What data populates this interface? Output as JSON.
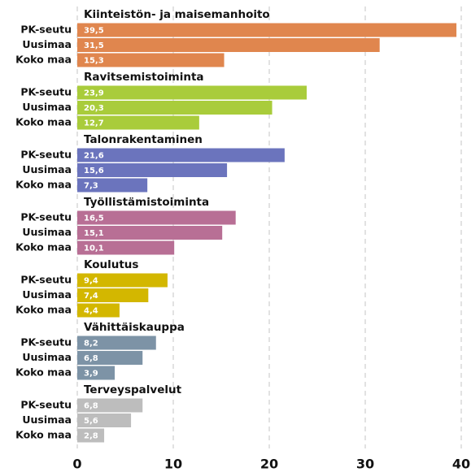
{
  "chart_data": {
    "type": "bar",
    "orientation": "horizontal",
    "categories": [
      "PK-seutu",
      "Uusimaa",
      "Koko maa"
    ],
    "groups": [
      {
        "name": "Kiinteistön- ja maisemanhoito",
        "color": "#e0864e",
        "values": [
          39.5,
          31.5,
          15.3
        ],
        "value_labels": [
          "39,5",
          "31,5",
          "15,3"
        ]
      },
      {
        "name": "Ravitsemistoiminta",
        "color": "#a9cc3b",
        "values": [
          23.9,
          20.3,
          12.7
        ],
        "value_labels": [
          "23,9",
          "20,3",
          "12,7"
        ]
      },
      {
        "name": "Talonrakentaminen",
        "color": "#6b74bd",
        "values": [
          21.6,
          15.6,
          7.3
        ],
        "value_labels": [
          "21,6",
          "15,6",
          "7,3"
        ]
      },
      {
        "name": "Työllistämistoiminta",
        "color": "#b86f95",
        "values": [
          16.5,
          15.1,
          10.1
        ],
        "value_labels": [
          "16,5",
          "15,1",
          "10,1"
        ]
      },
      {
        "name": "Koulutus",
        "color": "#d3b700",
        "values": [
          9.4,
          7.4,
          4.4
        ],
        "value_labels": [
          "9,4",
          "7,4",
          "4,4"
        ]
      },
      {
        "name": "Vähittäiskauppa",
        "color": "#7d93a6",
        "values": [
          8.2,
          6.8,
          3.9
        ],
        "value_labels": [
          "8,2",
          "6,8",
          "3,9"
        ]
      },
      {
        "name": "Terveyspalvelut",
        "color": "#bdbdbd",
        "values": [
          6.8,
          5.6,
          2.8
        ],
        "value_labels": [
          "6,8",
          "5,6",
          "2,8"
        ]
      }
    ],
    "xlim": [
      0,
      40
    ],
    "xticks": [
      0,
      10,
      20,
      30,
      40
    ],
    "grid": true
  }
}
